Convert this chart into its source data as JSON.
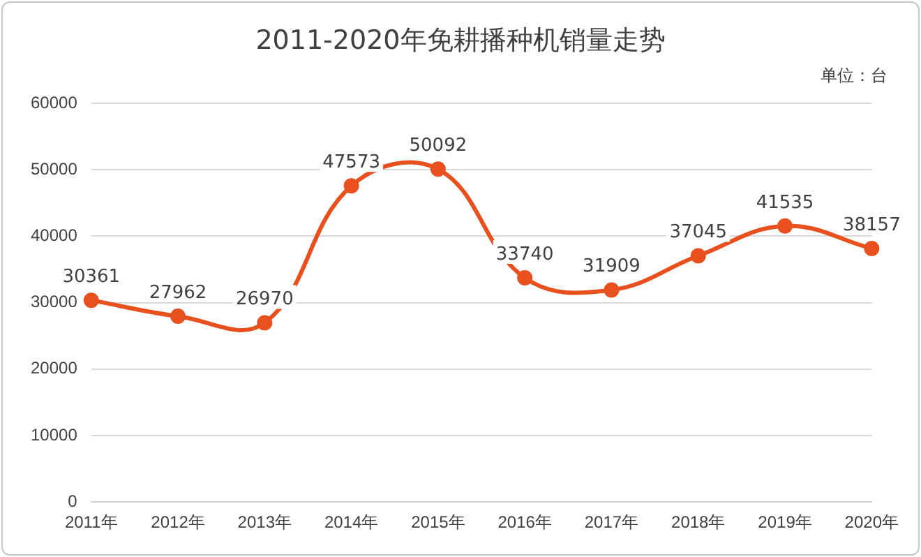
{
  "chart_data": {
    "type": "line",
    "title": "2011-2020年免耕播种机销量走势",
    "annotations": [
      "单位：台"
    ],
    "categories": [
      "2011年",
      "2012年",
      "2013年",
      "2014年",
      "2015年",
      "2016年",
      "2017年",
      "2018年",
      "2019年",
      "2020年"
    ],
    "series": [
      {
        "color": "#e8501e",
        "values": [
          30361,
          27962,
          26970,
          47573,
          50092,
          33740,
          31909,
          37045,
          41535,
          38157
        ]
      }
    ],
    "ylim": [
      0,
      60000
    ],
    "yticks": [
      0,
      10000,
      20000,
      30000,
      40000,
      50000,
      60000
    ],
    "grid": "y",
    "legend": false,
    "marker": "circle",
    "line_style": "solid",
    "data_labels": true
  }
}
